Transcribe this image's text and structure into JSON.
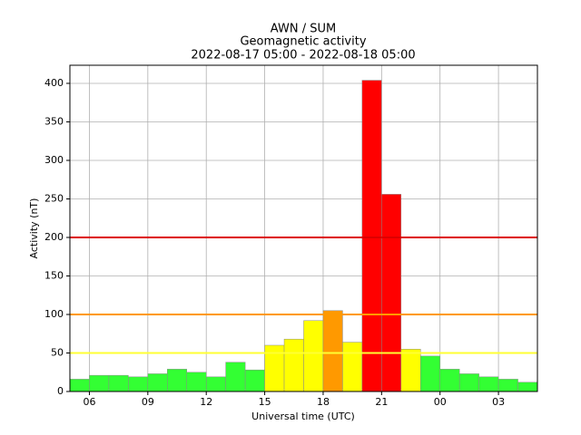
{
  "chart_data": {
    "type": "histogram",
    "title": [
      "AWN / SUM",
      "Geomagnetic activity",
      "2022-08-17 05:00 - 2022-08-18 05:00"
    ],
    "xlabel": "Universal time (UTC)",
    "ylabel": "Activity (nT)",
    "bins": [
      5,
      6,
      7,
      8,
      9,
      10,
      11,
      12,
      13,
      14,
      15,
      16,
      17,
      18,
      19,
      20,
      21,
      22,
      23,
      24,
      25,
      26,
      27,
      28,
      29
    ],
    "values": [
      16,
      21,
      21,
      19,
      23,
      29,
      25,
      19,
      38,
      28,
      60,
      68,
      92,
      105,
      64,
      404,
      256,
      55,
      46,
      29,
      23,
      19,
      16,
      12
    ],
    "colors": [
      "#33ff33",
      "#33ff33",
      "#33ff33",
      "#33ff33",
      "#33ff33",
      "#33ff33",
      "#33ff33",
      "#33ff33",
      "#33ff33",
      "#33ff33",
      "#ffff00",
      "#ffff00",
      "#ffff00",
      "#ff9900",
      "#ffff00",
      "#ff0000",
      "#ff0000",
      "#ffff00",
      "#33ff33",
      "#33ff33",
      "#33ff33",
      "#33ff33",
      "#33ff33",
      "#33ff33"
    ],
    "thresholds": [
      {
        "value": 50,
        "color": "#ffff33"
      },
      {
        "value": 100,
        "color": "#ff9900"
      },
      {
        "value": 200,
        "color": "#dd0000"
      }
    ],
    "xlim": [
      5,
      29
    ],
    "xticks": [
      {
        "value": 6,
        "label": "06"
      },
      {
        "value": 9,
        "label": "09"
      },
      12,
      15,
      18,
      21,
      {
        "value": 24,
        "label": "00"
      },
      {
        "value": 27,
        "label": "03"
      }
    ],
    "ylim": [
      0,
      423.5
    ],
    "yticks": [
      0,
      50,
      100,
      150,
      200,
      250,
      300,
      350,
      400
    ],
    "grid": true
  }
}
